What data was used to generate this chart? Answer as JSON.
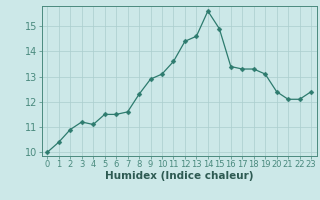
{
  "x": [
    0,
    1,
    2,
    3,
    4,
    5,
    6,
    7,
    8,
    9,
    10,
    11,
    12,
    13,
    14,
    15,
    16,
    17,
    18,
    19,
    20,
    21,
    22,
    23
  ],
  "y": [
    10.0,
    10.4,
    10.9,
    11.2,
    11.1,
    11.5,
    11.5,
    11.6,
    12.3,
    12.9,
    13.1,
    13.6,
    14.4,
    14.6,
    15.6,
    14.9,
    13.4,
    13.3,
    13.3,
    13.1,
    12.4,
    12.1,
    12.1,
    12.4
  ],
  "line_color": "#2d7b6e",
  "marker": "D",
  "marker_size": 2.5,
  "bg_color": "#cce8e8",
  "grid_color": "#aacece",
  "xlabel": "Humidex (Indice chaleur)",
  "ylim": [
    10,
    15.8
  ],
  "xlim": [
    -0.5,
    23.5
  ],
  "yticks": [
    10,
    11,
    12,
    13,
    14,
    15
  ],
  "xticks": [
    0,
    1,
    2,
    3,
    4,
    5,
    6,
    7,
    8,
    9,
    10,
    11,
    12,
    13,
    14,
    15,
    16,
    17,
    18,
    19,
    20,
    21,
    22,
    23
  ],
  "axis_color": "#4a8a7e",
  "font_color": "#2d5a52",
  "xlabel_fontsize": 7.5,
  "ytick_fontsize": 7,
  "xtick_fontsize": 6
}
